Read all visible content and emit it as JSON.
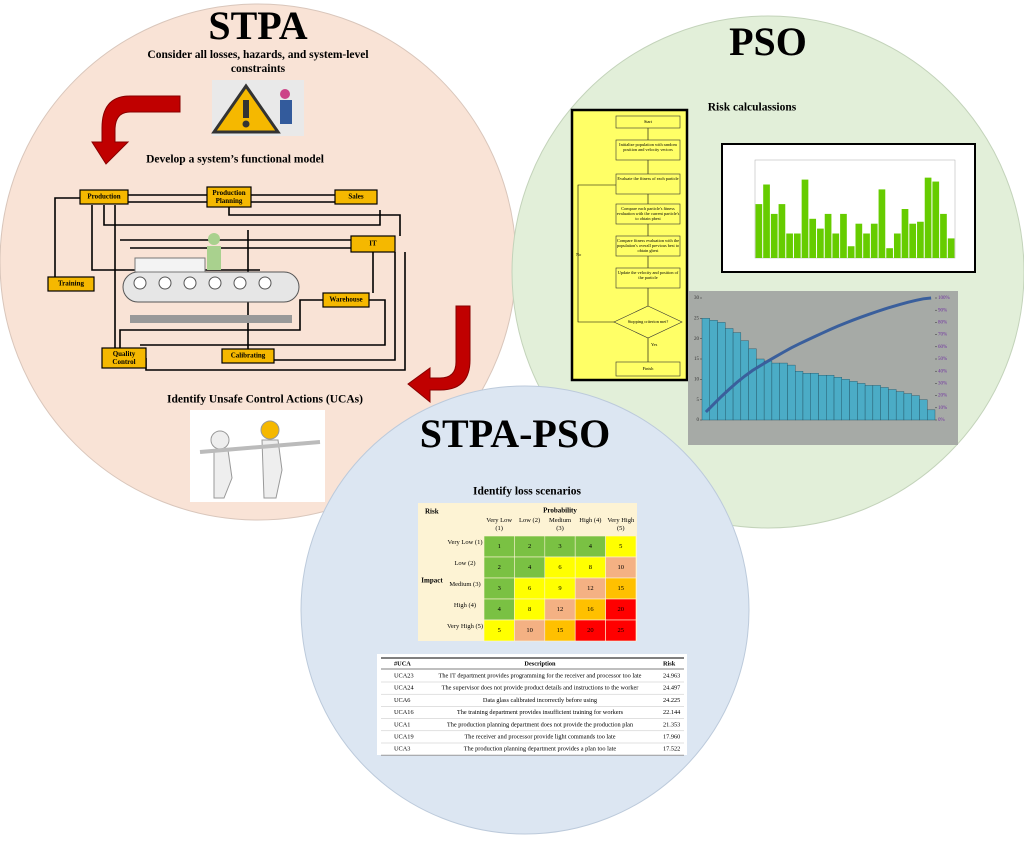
{
  "stpa": {
    "title": "STPA",
    "step1": "Consider all losses, hazards, and system-level constraints",
    "step2": "Develop a system’s functional model",
    "step3": "Identify Unsafe Control Actions (UCAs)",
    "model": [
      "Production",
      "Production Planning",
      "Sales",
      "IT",
      "Training",
      "Warehouse",
      "Quality Control",
      "Calibrating"
    ]
  },
  "pso": {
    "title": "PSO",
    "subtitle": "Risk calculassions",
    "flowchart": {
      "start": "Start",
      "steps": [
        "Initialize population with random position and velocity vectors",
        "Evaluate the fitness of each particle",
        "Compare each particle's fitness evaluation with the current particle's to obtain pbest",
        "Compare fitness evaluation with the population's overall previous best to obtain gbest",
        "Update the velocity and position of the particle"
      ],
      "decision": "Stopping criterion met?",
      "yes": "Yes",
      "no": "No",
      "end": "Finish"
    },
    "fitness_chart": {
      "values": [
        0.55,
        0.75,
        0.45,
        0.55,
        0.25,
        0.25,
        0.8,
        0.4,
        0.3,
        0.45,
        0.25,
        0.45,
        0.12,
        0.35,
        0.25,
        0.35,
        0.7,
        0.1,
        0.25,
        0.5,
        0.35,
        0.37,
        0.82,
        0.78,
        0.45,
        0.2
      ],
      "ylim": [
        0,
        1
      ],
      "color": "#66cc00"
    },
    "pareto_chart": {
      "values": [
        25,
        24.5,
        24,
        22.5,
        21.5,
        19.5,
        17.5,
        15,
        14.5,
        14,
        14,
        13.5,
        12,
        11.5,
        11.5,
        11,
        11,
        10.5,
        10,
        9.5,
        9,
        8.5,
        8.5,
        8,
        7.5,
        7,
        6.5,
        6,
        5,
        2.5
      ],
      "ylim": [
        0,
        30
      ],
      "yticks": [
        0,
        5,
        10,
        15,
        20,
        25,
        30
      ],
      "y2lim": [
        0,
        100
      ],
      "y2ticks": [
        {
          "value": 0,
          "label": "0%"
        },
        {
          "value": 10,
          "label": "10%"
        },
        {
          "value": 20,
          "label": "20%"
        },
        {
          "value": 30,
          "label": "30%"
        },
        {
          "value": 40,
          "label": "40%"
        },
        {
          "value": 50,
          "label": "50%"
        },
        {
          "value": 60,
          "label": "60%"
        },
        {
          "value": 70,
          "label": "70%"
        },
        {
          "value": 80,
          "label": "80%"
        },
        {
          "value": 90,
          "label": "90%"
        },
        {
          "value": 100,
          "label": "100%"
        }
      ],
      "color": "#4bacc6",
      "line_color": "#3a5f9c"
    }
  },
  "stpa_pso": {
    "title": "STPA-PSO",
    "subtitle": "Identify loss scenarios",
    "risk_matrix": {
      "corner": "Risk",
      "col_title": "Probability",
      "row_title": "Impact",
      "columns": [
        "Very Low (1)",
        "Low (2)",
        "Medium (3)",
        "High (4)",
        "Very High (5)"
      ],
      "rows": [
        "Very Low (1)",
        "Low (2)",
        "Medium (3)",
        "High (4)",
        "Very High (5)"
      ],
      "cells": [
        [
          1,
          2,
          3,
          4,
          5
        ],
        [
          2,
          4,
          6,
          8,
          10
        ],
        [
          3,
          6,
          9,
          12,
          15
        ],
        [
          4,
          8,
          12,
          16,
          20
        ],
        [
          5,
          10,
          15,
          20,
          25
        ]
      ],
      "cell_colors": [
        [
          "#7ac143",
          "#7ac143",
          "#7ac143",
          "#7ac143",
          "#ffff00"
        ],
        [
          "#7ac143",
          "#7ac143",
          "#ffff00",
          "#ffff00",
          "#f4b183"
        ],
        [
          "#7ac143",
          "#ffff00",
          "#ffff00",
          "#f4b183",
          "#ffc000"
        ],
        [
          "#7ac143",
          "#ffff00",
          "#f4b183",
          "#ffc000",
          "#ff0000"
        ],
        [
          "#ffff00",
          "#f4b183",
          "#ffc000",
          "#ff0000",
          "#ff0000"
        ]
      ]
    },
    "table": {
      "header": [
        "#UCA",
        "Description",
        "Risk"
      ],
      "rows": [
        [
          "UCA23",
          "The IT department provides programming for the receiver and processor too late",
          "24.963"
        ],
        [
          "UCA24",
          "The supervisor does not provide product details and instructions to the worker",
          "24.497"
        ],
        [
          "UCA6",
          "Data glass calibrated incorrectly before using",
          "24.225"
        ],
        [
          "UCA16",
          "The training department provides insufficient training for workers",
          "22.144"
        ],
        [
          "UCA1",
          "The production planning department does not provide the production plan",
          "21.353"
        ],
        [
          "UCA19",
          "The receiver and processor provide light commands too late",
          "17.960"
        ],
        [
          "UCA3",
          "The production planning department provides a plan too late",
          "17.522"
        ]
      ]
    }
  }
}
